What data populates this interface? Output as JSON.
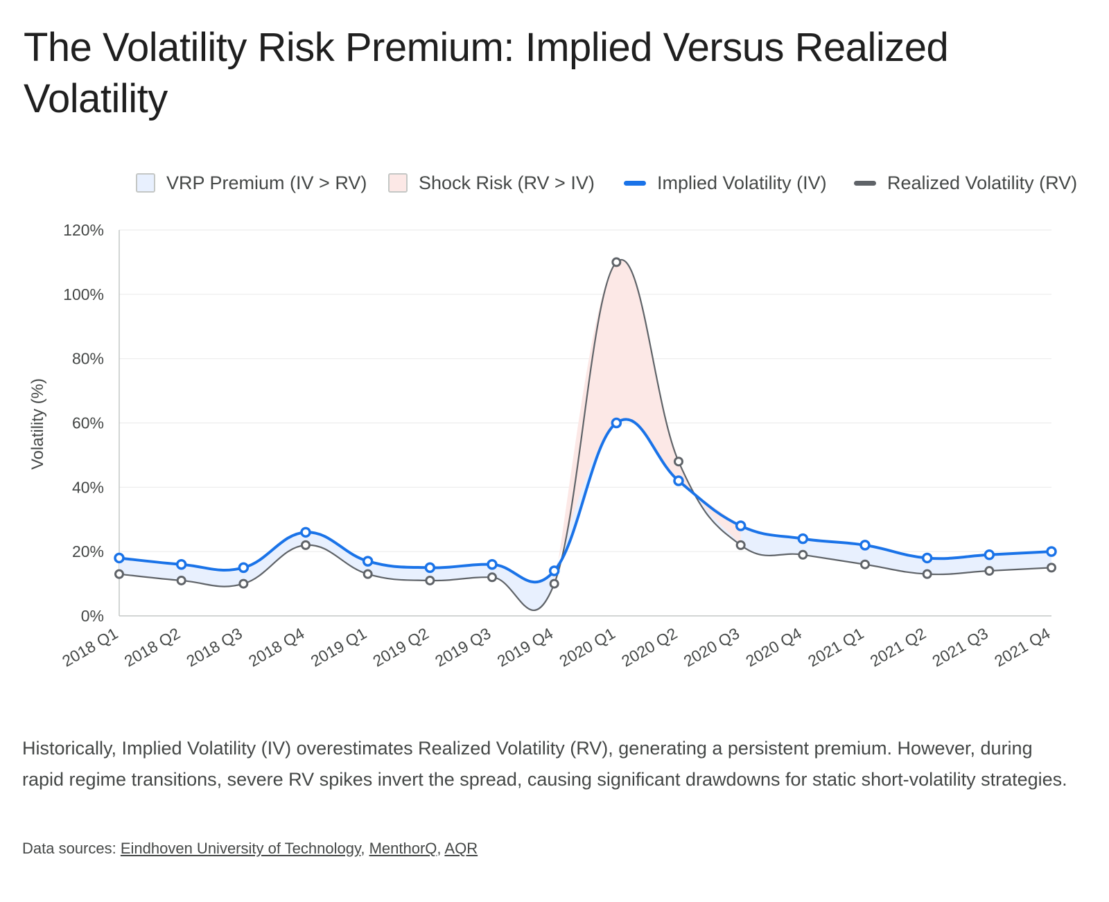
{
  "title": "The Volatility Risk Premium: Implied Versus Realized Volatility",
  "legend": [
    {
      "label": "VRP Premium (IV > RV)",
      "kind": "box",
      "fill": "#e8f0fe"
    },
    {
      "label": "Shock Risk (RV > IV)",
      "kind": "box",
      "fill": "#fce8e6"
    },
    {
      "label": "Implied Volatility (IV)",
      "kind": "line",
      "color": "#1a73e8"
    },
    {
      "label": "Realized Volatility (RV)",
      "kind": "line",
      "color": "#5f6368"
    }
  ],
  "chart_data": {
    "type": "line",
    "title": "The Volatility Risk Premium: Implied Versus Realized Volatility",
    "xlabel": "",
    "ylabel": "Volatility (%)",
    "ylim": [
      0,
      120
    ],
    "ytick_labels": [
      "0%",
      "20%",
      "40%",
      "60%",
      "80%",
      "100%",
      "120%"
    ],
    "categories": [
      "2018 Q1",
      "2018 Q2",
      "2018 Q3",
      "2018 Q4",
      "2019 Q1",
      "2019 Q2",
      "2019 Q3",
      "2019 Q4",
      "2020 Q1",
      "2020 Q2",
      "2020 Q3",
      "2020 Q4",
      "2021 Q1",
      "2021 Q2",
      "2021 Q3",
      "2021 Q4"
    ],
    "series": [
      {
        "name": "Implied Volatility (IV)",
        "color": "#1a73e8",
        "values": [
          18,
          16,
          15,
          26,
          17,
          15,
          16,
          14,
          60,
          42,
          28,
          24,
          22,
          18,
          19,
          20
        ]
      },
      {
        "name": "Realized Volatility (RV)",
        "color": "#5f6368",
        "values": [
          13,
          11,
          10,
          22,
          13,
          11,
          12,
          10,
          110,
          48,
          22,
          19,
          16,
          13,
          14,
          15
        ]
      }
    ],
    "areas": [
      {
        "name": "VRP Premium (IV > RV)",
        "fill": "#e8f0fe"
      },
      {
        "name": "Shock Risk (RV > IV)",
        "fill": "#fce8e6"
      }
    ],
    "grid": true,
    "legend_position": "top"
  },
  "description": "Historically, Implied Volatility (IV) overestimates Realized Volatility (RV), generating a persistent premium. However, during rapid regime transitions, severe RV spikes invert the spread, causing significant drawdowns for static short-volatility strategies.",
  "sources": {
    "prefix": "Data sources: ",
    "links": [
      "Eindhoven University of Technology",
      "MenthorQ",
      "AQR"
    ]
  }
}
